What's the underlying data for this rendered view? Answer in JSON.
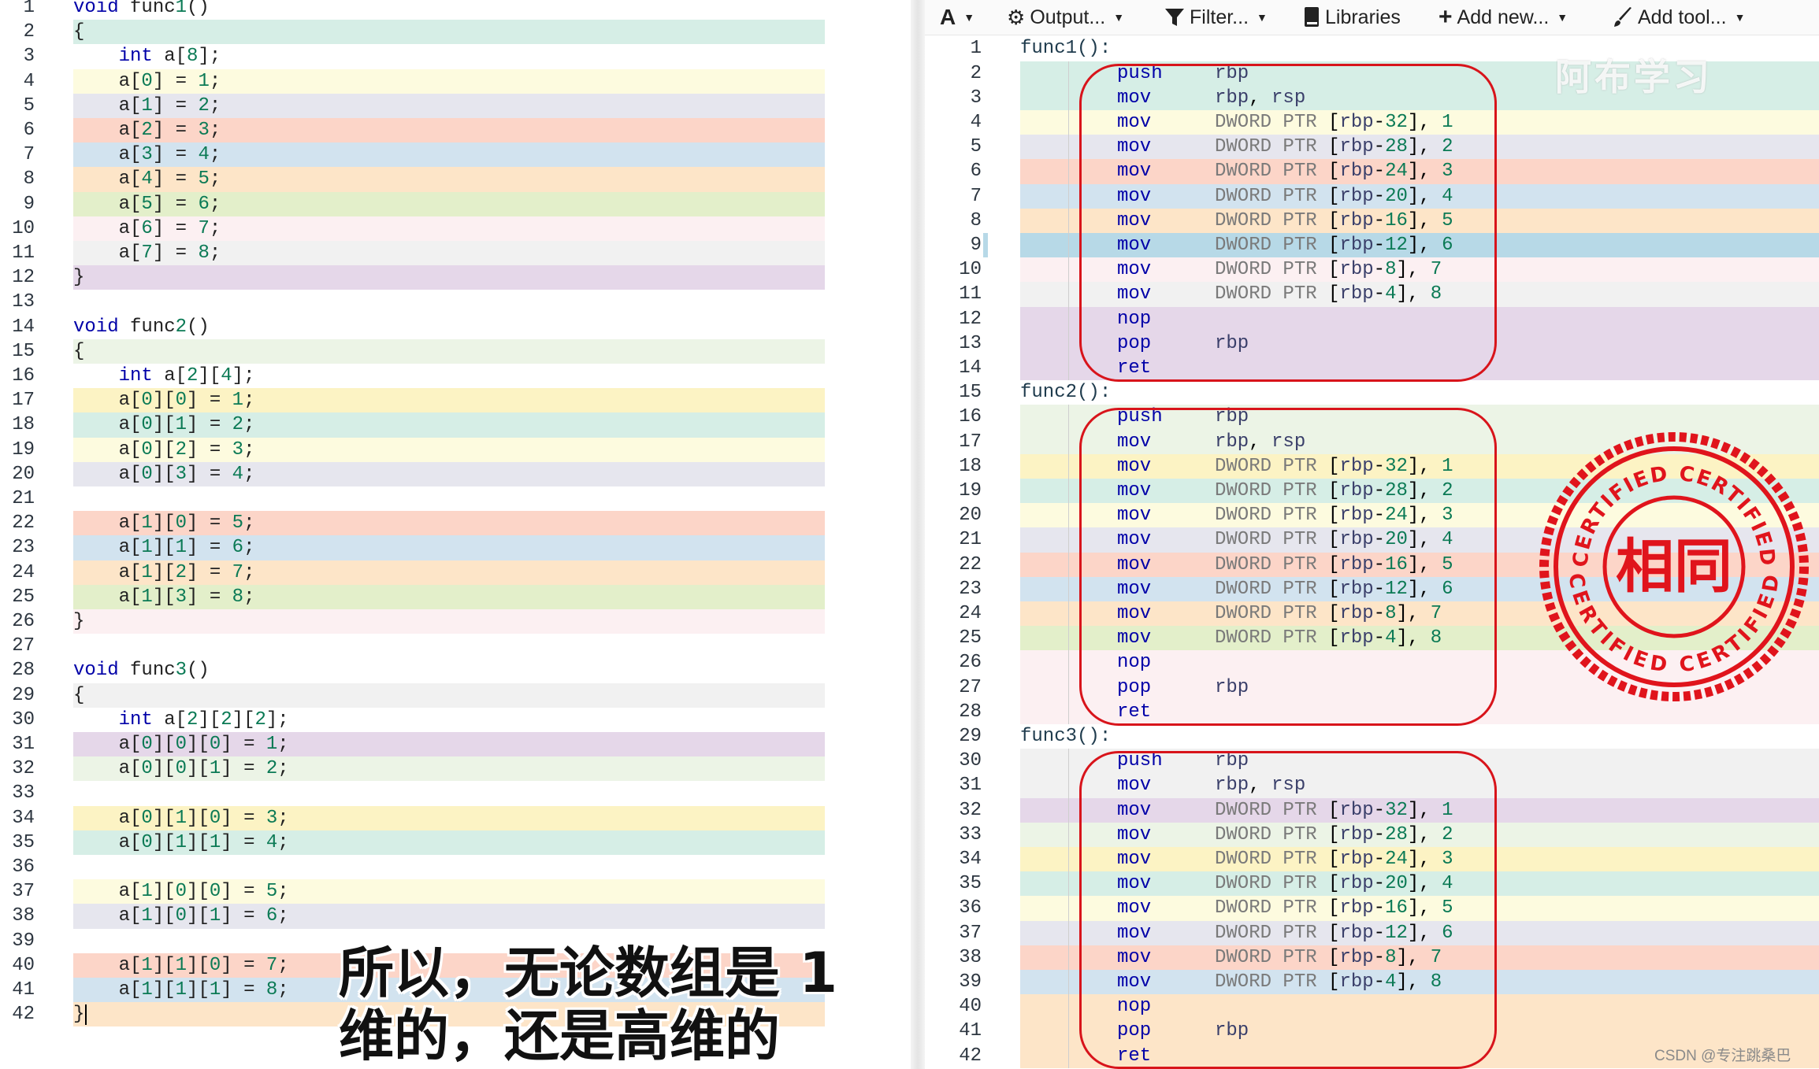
{
  "source_editor": {
    "lines": [
      "void func1()",
      "{",
      "    int a[8];",
      "    a[0] = 1;",
      "    a[1] = 2;",
      "    a[2] = 3;",
      "    a[3] = 4;",
      "    a[4] = 5;",
      "    a[5] = 6;",
      "    a[6] = 7;",
      "    a[7] = 8;",
      "}",
      "",
      "void func2()",
      "{",
      "    int a[2][4];",
      "    a[0][0] = 1;",
      "    a[0][1] = 2;",
      "    a[0][2] = 3;",
      "    a[0][3] = 4;",
      "",
      "    a[1][0] = 5;",
      "    a[1][1] = 6;",
      "    a[1][2] = 7;",
      "    a[1][3] = 8;",
      "}",
      "",
      "void func3()",
      "{",
      "    int a[2][2][2];",
      "    a[0][0][0] = 1;",
      "    a[0][0][1] = 2;",
      "",
      "    a[0][1][0] = 3;",
      "    a[0][1][1] = 4;",
      "",
      "    a[1][0][0] = 5;",
      "    a[1][0][1] = 6;",
      "",
      "    a[1][1][0] = 7;",
      "    a[1][1][1] = 8;",
      "}"
    ],
    "line_colors": [
      "",
      "#d6eee6",
      "#ffffff",
      "#fdfbdf",
      "#e6e6ee",
      "#fcd5c8",
      "#d2e3ef",
      "#fde5c8",
      "#e3efca",
      "#fcf0f2",
      "#f1f1f1",
      "#e5d7e9",
      "",
      "",
      "#ecf4e6",
      "#ffffff",
      "#fcf3c4",
      "#d6eee6",
      "#fdfbdf",
      "#e6e6ee",
      "",
      "#fcd5c8",
      "#d2e3ef",
      "#fde5c8",
      "#e3efca",
      "#fcf0f2",
      "",
      "",
      "#f1f1f1",
      "#ffffff",
      "#e5d7e9",
      "#ecf4e6",
      "",
      "#fcf3c4",
      "#d6eee6",
      "",
      "#fdfbdf",
      "#e6e6ee",
      "",
      "#fcd5c8",
      "#d2e3ef",
      "#fde5c8"
    ]
  },
  "toolbar": {
    "font_label": "A",
    "output_label": "Output...",
    "filter_label": "Filter...",
    "libraries_label": "Libraries",
    "add_new_label": "Add new...",
    "add_tool_label": "Add tool..."
  },
  "asm_output": {
    "lines": [
      {
        "label": "func1():"
      },
      {
        "op": "push",
        "args": "rbp"
      },
      {
        "op": "mov",
        "args": "rbp, rsp"
      },
      {
        "op": "mov",
        "args": "DWORD PTR [rbp-32], 1"
      },
      {
        "op": "mov",
        "args": "DWORD PTR [rbp-28], 2"
      },
      {
        "op": "mov",
        "args": "DWORD PTR [rbp-24], 3"
      },
      {
        "op": "mov",
        "args": "DWORD PTR [rbp-20], 4"
      },
      {
        "op": "mov",
        "args": "DWORD PTR [rbp-16], 5"
      },
      {
        "op": "mov",
        "args": "DWORD PTR [rbp-12], 6"
      },
      {
        "op": "mov",
        "args": "DWORD PTR [rbp-8], 7"
      },
      {
        "op": "mov",
        "args": "DWORD PTR [rbp-4], 8"
      },
      {
        "op": "nop",
        "args": ""
      },
      {
        "op": "pop",
        "args": "rbp"
      },
      {
        "op": "ret",
        "args": ""
      },
      {
        "label": "func2():"
      },
      {
        "op": "push",
        "args": "rbp"
      },
      {
        "op": "mov",
        "args": "rbp, rsp"
      },
      {
        "op": "mov",
        "args": "DWORD PTR [rbp-32], 1"
      },
      {
        "op": "mov",
        "args": "DWORD PTR [rbp-28], 2"
      },
      {
        "op": "mov",
        "args": "DWORD PTR [rbp-24], 3"
      },
      {
        "op": "mov",
        "args": "DWORD PTR [rbp-20], 4"
      },
      {
        "op": "mov",
        "args": "DWORD PTR [rbp-16], 5"
      },
      {
        "op": "mov",
        "args": "DWORD PTR [rbp-12], 6"
      },
      {
        "op": "mov",
        "args": "DWORD PTR [rbp-8], 7"
      },
      {
        "op": "mov",
        "args": "DWORD PTR [rbp-4], 8"
      },
      {
        "op": "nop",
        "args": ""
      },
      {
        "op": "pop",
        "args": "rbp"
      },
      {
        "op": "ret",
        "args": ""
      },
      {
        "label": "func3():"
      },
      {
        "op": "push",
        "args": "rbp"
      },
      {
        "op": "mov",
        "args": "rbp, rsp"
      },
      {
        "op": "mov",
        "args": "DWORD PTR [rbp-32], 1"
      },
      {
        "op": "mov",
        "args": "DWORD PTR [rbp-28], 2"
      },
      {
        "op": "mov",
        "args": "DWORD PTR [rbp-24], 3"
      },
      {
        "op": "mov",
        "args": "DWORD PTR [rbp-20], 4"
      },
      {
        "op": "mov",
        "args": "DWORD PTR [rbp-16], 5"
      },
      {
        "op": "mov",
        "args": "DWORD PTR [rbp-12], 6"
      },
      {
        "op": "mov",
        "args": "DWORD PTR [rbp-8], 7"
      },
      {
        "op": "mov",
        "args": "DWORD PTR [rbp-4], 8"
      },
      {
        "op": "nop",
        "args": ""
      },
      {
        "op": "pop",
        "args": "rbp"
      },
      {
        "op": "ret",
        "args": ""
      }
    ],
    "line_colors": [
      "",
      "#d6eee6",
      "#d6eee6",
      "#fdfbdf",
      "#e6e6ee",
      "#fcd5c8",
      "#d2e3ef",
      "#fde5c8",
      "#b7d9e7",
      "#fcf0f2",
      "#f1f1f1",
      "#e5d7e9",
      "#e5d7e9",
      "#e5d7e9",
      "",
      "#ecf4e6",
      "#ecf4e6",
      "#fcf3c4",
      "#d6eee6",
      "#fdfbdf",
      "#e6e6ee",
      "#fcd5c8",
      "#d2e3ef",
      "#fde5c8",
      "#e3efca",
      "#fcf0f2",
      "#fcf0f2",
      "#fcf0f2",
      "",
      "#f1f1f1",
      "#f1f1f1",
      "#e5d7e9",
      "#ecf4e6",
      "#fcf3c4",
      "#d6eee6",
      "#fdfbdf",
      "#e6e6ee",
      "#fcd5c8",
      "#d2e3ef",
      "#fde5c8",
      "#fde5c8",
      "#fde5c8"
    ],
    "selected_line": 9
  },
  "stamp": {
    "center_text": "相同",
    "top_arc": "CERTIFIED CERTIFIED",
    "bottom_arc": "CERTIFIED CERTIFIED",
    "color": "#e0141c"
  },
  "overlay": {
    "subtitle": "所以，无论数组是 1维的，还是高维的",
    "watermark": "阿布学习",
    "credit": "CSDN @专注跳桑巴"
  },
  "colors": {
    "keyword": "#0000a8",
    "number": "#0b7a55",
    "highlight_box": "#d8141b"
  }
}
